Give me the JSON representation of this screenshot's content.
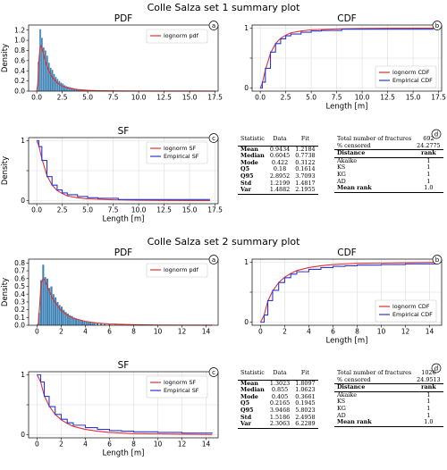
{
  "titles": [
    "Colle Salza set 1 summary plot",
    "Colle Salza set 2 summary plot"
  ],
  "colors": {
    "fit": "#e03030",
    "empirical": "#2a36d8",
    "hist": "#3d83b5",
    "grid": "#dddddd"
  },
  "chart_data": [
    {
      "id": "s1-pdf",
      "type": "bar",
      "title": "PDF",
      "panel": "a",
      "xlabel": "",
      "ylabel": "Density",
      "xlim": [
        -0.8,
        17.8
      ],
      "ylim": [
        0,
        1.3
      ],
      "xticks": [
        0.0,
        2.5,
        5.0,
        7.5,
        10.0,
        12.5,
        15.0,
        17.5
      ],
      "xticklabels": [
        "0.0",
        "2.5",
        "5.0",
        "7.5",
        "10.0",
        "12.5",
        "15.0",
        "17.5"
      ],
      "yticks": [
        0,
        0.2,
        0.4,
        0.6,
        0.8,
        1.0,
        1.2
      ],
      "yticklabels": [
        "0.0",
        "0.2",
        "0.4",
        "0.6",
        "0.8",
        "1.0",
        "1.2"
      ],
      "bin_width": 0.17,
      "bins": [
        [
          0.17,
          0.58
        ],
        [
          0.34,
          1.22
        ],
        [
          0.51,
          1.05
        ],
        [
          0.68,
          0.86
        ],
        [
          0.85,
          0.8
        ],
        [
          1.02,
          0.7
        ],
        [
          1.19,
          0.56
        ],
        [
          1.36,
          0.46
        ],
        [
          1.53,
          0.42
        ],
        [
          1.7,
          0.34
        ],
        [
          1.87,
          0.28
        ],
        [
          2.04,
          0.24
        ],
        [
          2.21,
          0.2
        ],
        [
          2.38,
          0.17
        ],
        [
          2.55,
          0.15
        ],
        [
          2.72,
          0.12
        ],
        [
          2.89,
          0.1
        ],
        [
          3.06,
          0.09
        ],
        [
          3.23,
          0.08
        ],
        [
          3.4,
          0.07
        ],
        [
          3.57,
          0.06
        ],
        [
          3.74,
          0.05
        ],
        [
          3.91,
          0.05
        ],
        [
          4.08,
          0.04
        ],
        [
          4.25,
          0.04
        ],
        [
          4.42,
          0.03
        ],
        [
          4.59,
          0.03
        ],
        [
          4.76,
          0.02
        ],
        [
          5.0,
          0.02
        ],
        [
          5.3,
          0.015
        ],
        [
          5.6,
          0.012
        ],
        [
          6.0,
          0.01
        ],
        [
          6.5,
          0.008
        ],
        [
          7.0,
          0.006
        ],
        [
          8.0,
          0.004
        ],
        [
          17.0,
          0.004
        ]
      ],
      "series": [
        {
          "name": "lognorm pdf",
          "kind": "fit",
          "x": [
            0,
            0.1,
            0.2,
            0.3,
            0.4,
            0.5,
            0.6,
            0.7,
            0.8,
            1.0,
            1.2,
            1.5,
            2.0,
            2.5,
            3.0,
            4.0,
            5.0,
            6.0,
            7.0,
            8.0,
            10.0,
            12.5,
            15.0,
            17.5
          ],
          "y": [
            0,
            0.15,
            0.56,
            0.82,
            0.89,
            0.86,
            0.79,
            0.71,
            0.63,
            0.5,
            0.4,
            0.28,
            0.16,
            0.1,
            0.064,
            0.03,
            0.016,
            0.009,
            0.006,
            0.004,
            0.002,
            0.001,
            0.0005,
            0.0002
          ]
        }
      ],
      "legend": "top-right"
    },
    {
      "id": "s1-cdf",
      "type": "line",
      "title": "CDF",
      "panel": "b",
      "xlabel": "Length [m]",
      "ylabel": "",
      "xlim": [
        -0.8,
        17.8
      ],
      "ylim": [
        -0.05,
        1.05
      ],
      "xticks": [
        0.0,
        2.5,
        5.0,
        7.5,
        10.0,
        12.5,
        15.0,
        17.5
      ],
      "xticklabels": [
        "0.0",
        "2.5",
        "5.0",
        "7.5",
        "10.0",
        "12.5",
        "15.0",
        "17.5"
      ],
      "yticks": [
        0,
        0.5,
        1
      ],
      "yticklabels": [
        "0",
        "",
        "1"
      ],
      "series": [
        {
          "name": "lognorm CDF",
          "kind": "fit",
          "x": [
            0,
            0.2,
            0.5,
            1.0,
            1.5,
            2.0,
            2.5,
            3.0,
            4.0,
            5.0,
            7.5,
            10.0,
            12.5,
            15.0,
            17.0
          ],
          "y": [
            0,
            0.08,
            0.3,
            0.58,
            0.74,
            0.83,
            0.88,
            0.92,
            0.95,
            0.97,
            0.985,
            0.992,
            0.995,
            0.997,
            0.998
          ]
        },
        {
          "name": "Empirical CDF",
          "kind": "empirical",
          "x": [
            0,
            0.2,
            0.5,
            1.0,
            1.5,
            2.0,
            2.5,
            3.0,
            4.0,
            5.0,
            6.0,
            7.5,
            8.0,
            17.0
          ],
          "y": [
            0,
            0.1,
            0.33,
            0.6,
            0.74,
            0.82,
            0.87,
            0.9,
            0.93,
            0.95,
            0.96,
            0.96,
            0.98,
            0.98
          ]
        }
      ],
      "legend": "bottom-right"
    },
    {
      "id": "s1-sf",
      "type": "line",
      "title": "SF",
      "panel": "c",
      "xlabel": "Length [m]",
      "ylabel": "Density",
      "xlim": [
        -0.8,
        17.8
      ],
      "ylim": [
        -0.05,
        1.05
      ],
      "xticks": [
        0.0,
        2.5,
        5.0,
        7.5,
        10.0,
        12.5,
        15.0,
        17.5
      ],
      "xticklabels": [
        "0.0",
        "2.5",
        "5.0",
        "7.5",
        "10.0",
        "12.5",
        "15.0",
        "17.5"
      ],
      "yticks": [
        0,
        0.5,
        1
      ],
      "yticklabels": [
        "0",
        "",
        "1"
      ],
      "series": [
        {
          "name": "lognorm SF",
          "kind": "fit",
          "x": [
            0,
            0.2,
            0.5,
            1.0,
            1.5,
            2.0,
            2.5,
            3.0,
            4.0,
            5.0,
            7.5,
            10.0,
            12.5,
            15.0,
            17.0
          ],
          "y": [
            1,
            0.92,
            0.7,
            0.42,
            0.26,
            0.17,
            0.12,
            0.08,
            0.05,
            0.03,
            0.015,
            0.008,
            0.005,
            0.003,
            0.002
          ]
        },
        {
          "name": "Empirical SF",
          "kind": "empirical",
          "x": [
            0,
            0.2,
            0.5,
            1.0,
            1.5,
            2.0,
            2.5,
            3.0,
            4.0,
            5.0,
            6.0,
            7.5,
            8.0,
            17.0
          ],
          "y": [
            1,
            0.9,
            0.67,
            0.4,
            0.26,
            0.18,
            0.13,
            0.1,
            0.07,
            0.05,
            0.04,
            0.04,
            0.02,
            0.02
          ]
        }
      ],
      "legend": "top-right"
    },
    {
      "id": "s2-pdf",
      "type": "bar",
      "title": "PDF",
      "panel": "a",
      "xlabel": "",
      "ylabel": "Density",
      "xlim": [
        -0.7,
        15.0
      ],
      "ylim": [
        0,
        0.85
      ],
      "xticks": [
        0,
        2,
        4,
        6,
        8,
        10,
        12,
        14
      ],
      "xticklabels": [
        "0",
        "2",
        "4",
        "6",
        "8",
        "10",
        "12",
        "14"
      ],
      "yticks": [
        0,
        0.1,
        0.2,
        0.3,
        0.4,
        0.5,
        0.6,
        0.7,
        0.8
      ],
      "yticklabels": [
        "0.0",
        "0.1",
        "0.2",
        "0.3",
        "0.4",
        "0.5",
        "0.6",
        "0.7",
        "0.8"
      ],
      "bin_width": 0.17,
      "bins": [
        [
          0.17,
          0.16
        ],
        [
          0.34,
          0.58
        ],
        [
          0.51,
          0.78
        ],
        [
          0.68,
          0.62
        ],
        [
          0.85,
          0.6
        ],
        [
          1.02,
          0.48
        ],
        [
          1.19,
          0.5
        ],
        [
          1.36,
          0.4
        ],
        [
          1.53,
          0.36
        ],
        [
          1.7,
          0.3
        ],
        [
          1.87,
          0.26
        ],
        [
          2.04,
          0.24
        ],
        [
          2.21,
          0.2
        ],
        [
          2.38,
          0.17
        ],
        [
          2.55,
          0.15
        ],
        [
          2.72,
          0.13
        ],
        [
          2.89,
          0.12
        ],
        [
          3.06,
          0.1
        ],
        [
          3.23,
          0.09
        ],
        [
          3.4,
          0.08
        ],
        [
          3.57,
          0.07
        ],
        [
          3.74,
          0.06
        ],
        [
          3.91,
          0.05
        ],
        [
          4.08,
          0.05
        ],
        [
          4.25,
          0.04
        ],
        [
          4.42,
          0.04
        ],
        [
          4.59,
          0.03
        ],
        [
          4.76,
          0.03
        ],
        [
          5.0,
          0.025
        ],
        [
          5.3,
          0.02
        ],
        [
          5.6,
          0.016
        ],
        [
          6.0,
          0.012
        ],
        [
          6.5,
          0.008
        ],
        [
          7.0,
          0.006
        ],
        [
          8.0,
          0.004
        ],
        [
          14.5,
          0.003
        ]
      ],
      "series": [
        {
          "name": "lognorm pdf",
          "kind": "fit",
          "x": [
            0,
            0.1,
            0.2,
            0.3,
            0.4,
            0.5,
            0.6,
            0.7,
            0.8,
            1.0,
            1.2,
            1.5,
            2.0,
            2.5,
            3.0,
            4.0,
            5.0,
            6.0,
            8.0,
            10.0,
            12.0,
            14.5
          ],
          "y": [
            0,
            0.02,
            0.22,
            0.45,
            0.57,
            0.6,
            0.59,
            0.56,
            0.52,
            0.44,
            0.37,
            0.29,
            0.19,
            0.13,
            0.09,
            0.05,
            0.028,
            0.017,
            0.007,
            0.003,
            0.0015,
            0.0007
          ]
        }
      ],
      "legend": "top-right"
    },
    {
      "id": "s2-cdf",
      "type": "line",
      "title": "CDF",
      "panel": "b",
      "xlabel": "Length [m]",
      "ylabel": "",
      "xlim": [
        -0.7,
        15.0
      ],
      "ylim": [
        -0.05,
        1.05
      ],
      "xticks": [
        0,
        2,
        4,
        6,
        8,
        10,
        12,
        14
      ],
      "xticklabels": [
        "0",
        "2",
        "4",
        "6",
        "8",
        "10",
        "12",
        "14"
      ],
      "yticks": [
        0,
        0.5,
        1
      ],
      "yticklabels": [
        "0",
        "",
        "1"
      ],
      "series": [
        {
          "name": "lognorm CDF",
          "kind": "fit",
          "x": [
            0,
            0.3,
            0.6,
            1.0,
            1.5,
            2.0,
            2.5,
            3.0,
            4.0,
            5.0,
            6.0,
            8.0,
            10.0,
            12.0,
            14.5
          ],
          "y": [
            0,
            0.12,
            0.35,
            0.52,
            0.66,
            0.75,
            0.81,
            0.86,
            0.91,
            0.94,
            0.96,
            0.98,
            0.985,
            0.99,
            0.995
          ]
        },
        {
          "name": "Empirical CDF",
          "kind": "empirical",
          "x": [
            0,
            0.3,
            0.6,
            1.0,
            1.5,
            2.0,
            2.5,
            3.0,
            4.0,
            5.0,
            6.0,
            7.0,
            8.0,
            10.0,
            12.0,
            14.5
          ],
          "y": [
            0,
            0.12,
            0.36,
            0.53,
            0.66,
            0.74,
            0.8,
            0.84,
            0.88,
            0.91,
            0.93,
            0.94,
            0.95,
            0.96,
            0.97,
            0.98
          ]
        }
      ],
      "legend": "bottom-right"
    },
    {
      "id": "s2-sf",
      "type": "line",
      "title": "SF",
      "panel": "c",
      "xlabel": "Length [m]",
      "ylabel": "",
      "xlim": [
        -0.7,
        15.0
      ],
      "ylim": [
        -0.05,
        1.05
      ],
      "xticks": [
        0,
        2,
        4,
        6,
        8,
        10,
        12,
        14
      ],
      "xticklabels": [
        "0",
        "2",
        "4",
        "6",
        "8",
        "10",
        "12",
        "14"
      ],
      "yticks": [
        0,
        0.5,
        1
      ],
      "yticklabels": [
        "0",
        "",
        "1"
      ],
      "series": [
        {
          "name": "lognorm SF",
          "kind": "fit",
          "x": [
            0,
            0.3,
            0.6,
            1.0,
            1.5,
            2.0,
            2.5,
            3.0,
            4.0,
            5.0,
            6.0,
            8.0,
            10.0,
            12.0,
            14.5
          ],
          "y": [
            1,
            0.88,
            0.65,
            0.48,
            0.34,
            0.25,
            0.19,
            0.14,
            0.09,
            0.06,
            0.04,
            0.02,
            0.015,
            0.01,
            0.005
          ]
        },
        {
          "name": "Empirical SF",
          "kind": "empirical",
          "x": [
            0,
            0.3,
            0.6,
            1.0,
            1.5,
            2.0,
            2.5,
            3.0,
            4.0,
            5.0,
            6.0,
            7.0,
            8.0,
            10.0,
            12.0,
            14.5
          ],
          "y": [
            1,
            0.88,
            0.64,
            0.47,
            0.34,
            0.26,
            0.2,
            0.16,
            0.12,
            0.09,
            0.07,
            0.06,
            0.05,
            0.04,
            0.03,
            0.02
          ]
        }
      ],
      "legend": "top-right"
    },
    {
      "id": "s1-table",
      "type": "table",
      "panel": "d",
      "stats_header": [
        "Statistic",
        "Data",
        "Fit"
      ],
      "stats": [
        [
          "Mean",
          "0.9434",
          "1.2184"
        ],
        [
          "Median",
          "0.6045",
          "0.7738"
        ],
        [
          "Mode",
          "0.422",
          "0.3122"
        ],
        [
          "Q5",
          "0.18",
          "0.1614"
        ],
        [
          "Q95",
          "2.8952",
          "3.7093"
        ],
        [
          "Std",
          "1.2199",
          "1.4817"
        ],
        [
          "Var",
          "1.4882",
          "2.1955"
        ]
      ],
      "summary": [
        [
          "Total number of fractures",
          "692"
        ],
        [
          "% censored",
          "24.2775"
        ]
      ],
      "rank_header": [
        "Distance",
        "rank"
      ],
      "ranks": [
        [
          "Akaike",
          "1"
        ],
        [
          "KS",
          "1"
        ],
        [
          "KG",
          "1"
        ],
        [
          "AD",
          "1"
        ]
      ],
      "mean_rank": [
        "Mean rank",
        "1.0"
      ]
    },
    {
      "id": "s2-table",
      "type": "table",
      "panel": "d",
      "stats_header": [
        "Statistic",
        "Data",
        "Fit"
      ],
      "stats": [
        [
          "Mean",
          "1.3023",
          "1.8097"
        ],
        [
          "Median",
          "0.855",
          "1.0623"
        ],
        [
          "Mode",
          "0.405",
          "0.3661"
        ],
        [
          "Q5",
          "0.2165",
          "0.1945"
        ],
        [
          "Q95",
          "3.9468",
          "5.8023"
        ],
        [
          "Std",
          "1.5186",
          "2.4958"
        ],
        [
          "Var",
          "2.3063",
          "6.2289"
        ]
      ],
      "summary": [
        [
          "Total number of fractures",
          "1026"
        ],
        [
          "% censored",
          "24.9513"
        ]
      ],
      "rank_header": [
        "Distance",
        "rank"
      ],
      "ranks": [
        [
          "Akaike",
          "1"
        ],
        [
          "KS",
          "1"
        ],
        [
          "KG",
          "1"
        ],
        [
          "AD",
          "1"
        ]
      ],
      "mean_rank": [
        "Mean rank",
        "1.0"
      ]
    }
  ]
}
